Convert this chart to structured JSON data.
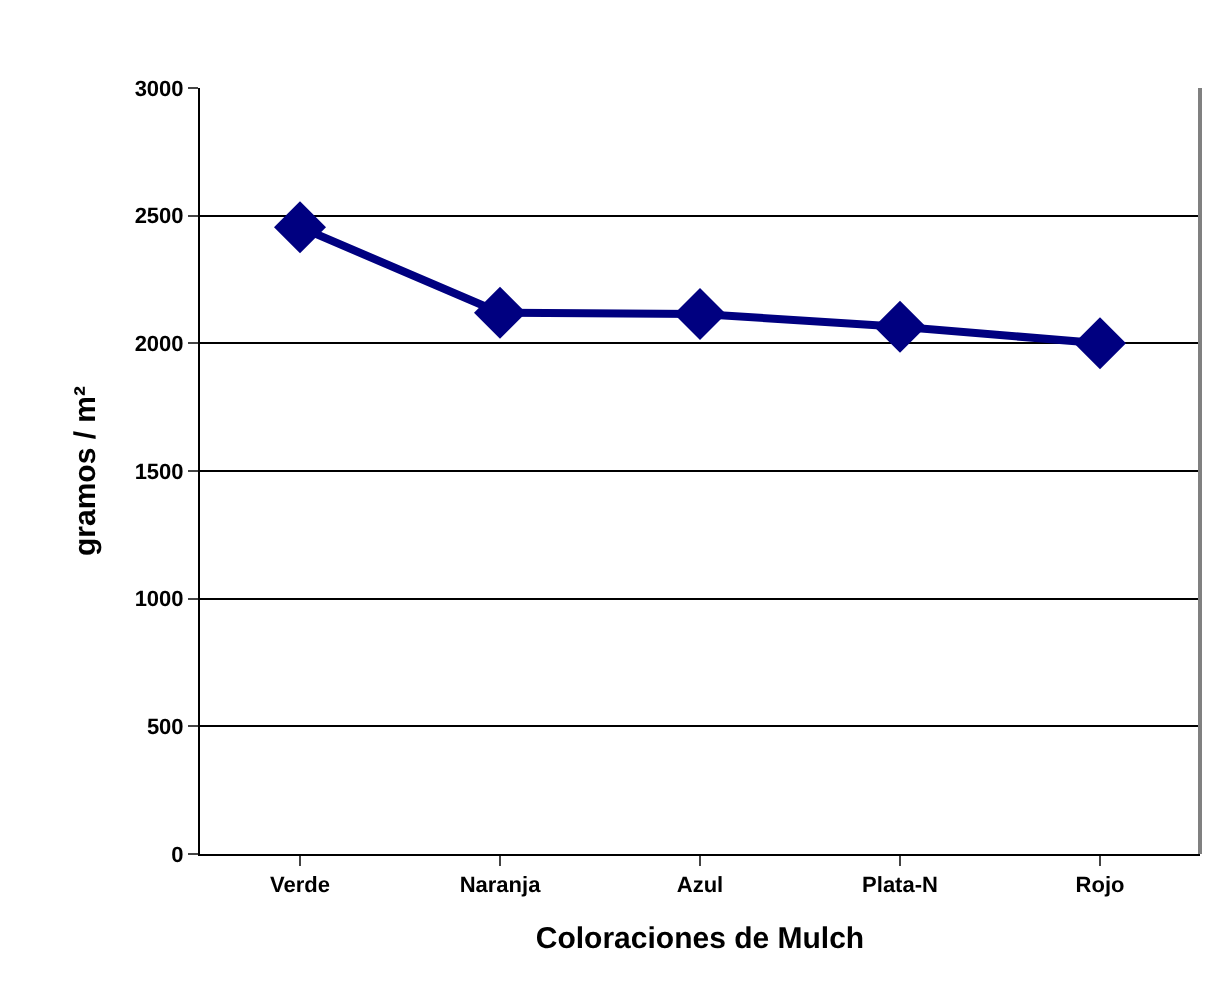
{
  "chart_data": {
    "type": "line",
    "xlabel": "Coloraciones de Mulch",
    "ylabel": "gramos / m²",
    "categories": [
      "Verde",
      "Naranja",
      "Azul",
      "Plata-N",
      "Rojo"
    ],
    "series": [
      {
        "color": "#000080",
        "values": [
          2455,
          2120,
          2115,
          2065,
          2000
        ]
      }
    ],
    "ylim": [
      0,
      3000
    ],
    "yticks": [
      0,
      500,
      1000,
      1500,
      2000,
      2500,
      3000
    ],
    "grid": "y",
    "marker": "diamond",
    "line_style": "solid",
    "legend": false
  }
}
